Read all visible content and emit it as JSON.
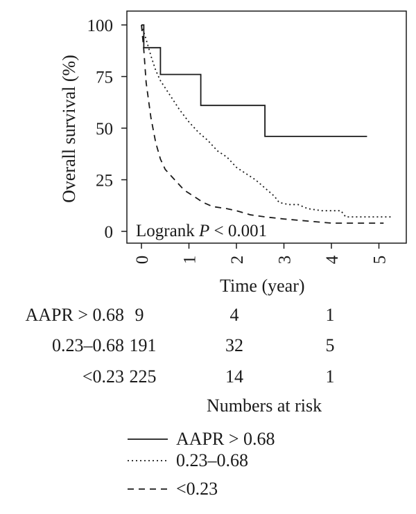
{
  "chart_data": {
    "type": "line",
    "title": "",
    "xlabel": "Time (year)",
    "ylabel": "Overall survival (%)",
    "xlim": [
      0,
      5.3
    ],
    "ylim": [
      0,
      100
    ],
    "x_ticks": [
      "0",
      "1",
      "2",
      "3",
      "4",
      "5"
    ],
    "y_ticks": [
      "0",
      "25",
      "50",
      "75",
      "100"
    ],
    "annotation": {
      "prefix": "Logrank ",
      "italic": "P",
      "suffix": " < 0.001"
    },
    "series": [
      {
        "name": "AAPR > 0.68",
        "style": "solid",
        "points": [
          [
            0,
            100
          ],
          [
            0.05,
            100
          ],
          [
            0.05,
            89
          ],
          [
            0.4,
            89
          ],
          [
            0.4,
            76
          ],
          [
            1.25,
            76
          ],
          [
            1.25,
            61
          ],
          [
            2.6,
            61
          ],
          [
            2.6,
            46
          ],
          [
            4.75,
            46
          ]
        ]
      },
      {
        "name": "0.23–0.68",
        "style": "dotted",
        "points": [
          [
            0,
            100
          ],
          [
            0.1,
            93
          ],
          [
            0.2,
            85
          ],
          [
            0.3,
            78
          ],
          [
            0.4,
            73
          ],
          [
            0.6,
            66
          ],
          [
            0.8,
            59
          ],
          [
            1.0,
            53
          ],
          [
            1.2,
            48
          ],
          [
            1.4,
            44
          ],
          [
            1.6,
            39
          ],
          [
            1.8,
            36
          ],
          [
            2.0,
            31
          ],
          [
            2.2,
            28
          ],
          [
            2.4,
            25
          ],
          [
            2.6,
            21
          ],
          [
            2.8,
            17
          ],
          [
            2.9,
            14
          ],
          [
            3.1,
            13
          ],
          [
            3.3,
            13
          ],
          [
            3.5,
            11
          ],
          [
            3.8,
            10
          ],
          [
            4.2,
            10
          ],
          [
            4.3,
            7
          ],
          [
            5.3,
            7
          ]
        ]
      },
      {
        "name": "<0.23",
        "style": "dashed",
        "points": [
          [
            0,
            100
          ],
          [
            0.05,
            88
          ],
          [
            0.1,
            72
          ],
          [
            0.2,
            55
          ],
          [
            0.3,
            43
          ],
          [
            0.4,
            35
          ],
          [
            0.5,
            30
          ],
          [
            0.7,
            25
          ],
          [
            0.9,
            20
          ],
          [
            1.1,
            17
          ],
          [
            1.3,
            14
          ],
          [
            1.5,
            12
          ],
          [
            1.8,
            11
          ],
          [
            2.0,
            10
          ],
          [
            2.3,
            8
          ],
          [
            2.6,
            7
          ],
          [
            3.0,
            6
          ],
          [
            3.5,
            5
          ],
          [
            4.0,
            4
          ],
          [
            5.1,
            4
          ]
        ]
      }
    ],
    "legend_position": "bottom"
  },
  "risk_table": {
    "title": "Numbers at risk",
    "rows": [
      {
        "label": "AAPR > 0.68",
        "values": [
          "9",
          "4",
          "1"
        ]
      },
      {
        "label": "0.23–0.68",
        "values": [
          "191",
          "32",
          "5"
        ]
      },
      {
        "label": "<0.23",
        "values": [
          "225",
          "14",
          "1"
        ]
      }
    ]
  }
}
